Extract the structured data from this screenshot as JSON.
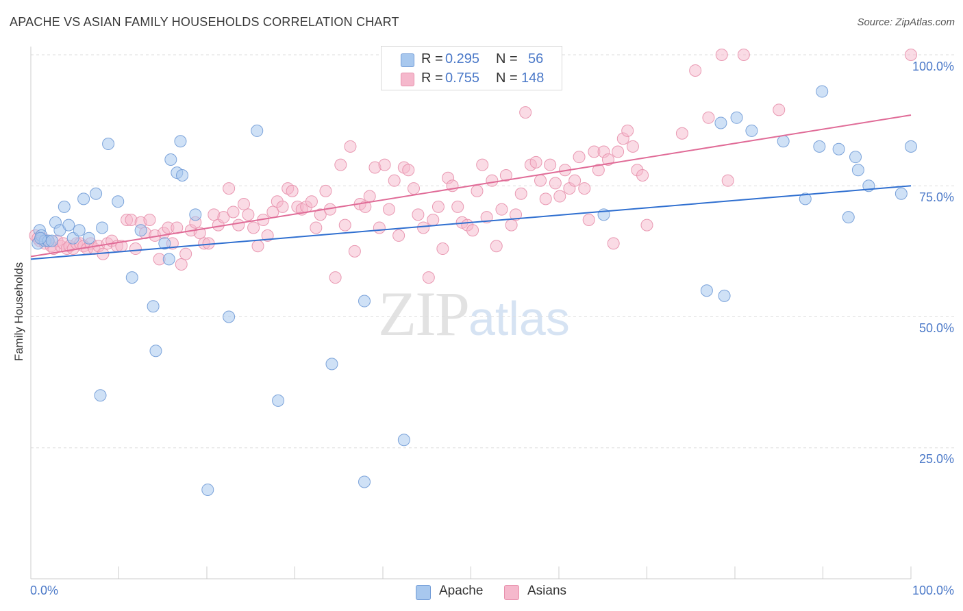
{
  "title": "APACHE VS ASIAN FAMILY HOUSEHOLDS CORRELATION CHART",
  "source": "Source: ZipAtlas.com",
  "legend": {
    "apache": {
      "r_label": "R =",
      "r_value": "0.295",
      "n_label": "N =",
      "n_value": "56"
    },
    "asians": {
      "r_label": "R =",
      "r_value": "0.755",
      "n_label": "N =",
      "n_value": "148"
    }
  },
  "bottom_legend": {
    "apache": "Apache",
    "asians": "Asians"
  },
  "watermark": {
    "zip": "ZIP",
    "atlas": "atlas"
  },
  "colors": {
    "apache_fill": "#a8c8ee",
    "apache_stroke": "#6f9ad6",
    "apache_line": "#2f6fd0",
    "asians_fill": "#f5b8cc",
    "asians_stroke": "#e78fab",
    "asians_line": "#e06b97",
    "tick_label": "#4a78c8",
    "grid": "#dddddd"
  },
  "chart_data": {
    "type": "scatter",
    "title": "APACHE VS ASIAN FAMILY HOUSEHOLDS CORRELATION CHART",
    "xlabel": "",
    "ylabel": "Family Households",
    "xlim": [
      0,
      100
    ],
    "ylim": [
      0,
      100
    ],
    "x_tick_labels": [
      "0.0%",
      "100.0%"
    ],
    "y_ticks": [
      25,
      50,
      75,
      100
    ],
    "y_tick_labels": [
      "25.0%",
      "50.0%",
      "75.0%",
      "100.0%"
    ],
    "grid": "horizontal dashed",
    "legend_position": "top-center",
    "series": [
      {
        "name": "Apache",
        "r": 0.295,
        "n": 56,
        "trend": {
          "x": [
            0,
            100
          ],
          "y": [
            61.0,
            75.0
          ]
        },
        "points": [
          [
            0.8,
            64.0
          ],
          [
            1.0,
            66.5
          ],
          [
            1.2,
            65.5
          ],
          [
            1.6,
            64.5
          ],
          [
            2.0,
            64.5
          ],
          [
            2.4,
            64.5
          ],
          [
            2.8,
            68.0
          ],
          [
            3.3,
            66.5
          ],
          [
            3.8,
            71.0
          ],
          [
            4.3,
            67.5
          ],
          [
            4.8,
            65.0
          ],
          [
            5.5,
            66.5
          ],
          [
            6.0,
            72.5
          ],
          [
            6.6,
            65.0
          ],
          [
            7.4,
            73.5
          ],
          [
            8.1,
            67.0
          ],
          [
            8.8,
            83.0
          ],
          [
            9.9,
            72.0
          ],
          [
            11.5,
            57.5
          ],
          [
            12.5,
            66.5
          ],
          [
            13.9,
            52.0
          ],
          [
            14.2,
            43.5
          ],
          [
            15.2,
            64.0
          ],
          [
            15.7,
            61.0
          ],
          [
            15.9,
            80.0
          ],
          [
            16.6,
            77.5
          ],
          [
            17.0,
            83.5
          ],
          [
            17.2,
            77.0
          ],
          [
            18.7,
            69.5
          ],
          [
            7.9,
            35.0
          ],
          [
            20.1,
            17.0
          ],
          [
            22.5,
            50.0
          ],
          [
            25.7,
            85.5
          ],
          [
            28.1,
            34.0
          ],
          [
            34.2,
            41.0
          ],
          [
            37.9,
            53.0
          ],
          [
            37.9,
            18.5
          ],
          [
            42.4,
            26.5
          ],
          [
            65.1,
            69.5
          ],
          [
            76.8,
            55.0
          ],
          [
            78.8,
            54.0
          ],
          [
            78.4,
            87.0
          ],
          [
            80.2,
            88.0
          ],
          [
            81.9,
            85.5
          ],
          [
            85.5,
            83.5
          ],
          [
            88.0,
            72.5
          ],
          [
            89.6,
            82.5
          ],
          [
            89.9,
            93.0
          ],
          [
            91.8,
            82.0
          ],
          [
            92.9,
            69.0
          ],
          [
            93.7,
            80.5
          ],
          [
            94.0,
            78.0
          ],
          [
            95.2,
            75.0
          ],
          [
            98.9,
            73.5
          ],
          [
            100.0,
            82.5
          ],
          [
            1.1,
            65.0
          ]
        ]
      },
      {
        "name": "Asians",
        "r": 0.755,
        "n": 148,
        "trend": {
          "x": [
            0,
            100
          ],
          "y": [
            61.5,
            88.5
          ]
        },
        "points": [
          [
            0.5,
            65.5
          ],
          [
            0.8,
            65.0
          ],
          [
            1.0,
            64.5
          ],
          [
            1.3,
            65.0
          ],
          [
            1.6,
            64.0
          ],
          [
            1.9,
            64.5
          ],
          [
            2.3,
            63.5
          ],
          [
            2.6,
            63.0
          ],
          [
            3.0,
            64.5
          ],
          [
            3.4,
            63.5
          ],
          [
            3.7,
            64.0
          ],
          [
            4.1,
            63.0
          ],
          [
            4.4,
            63.5
          ],
          [
            4.8,
            63.0
          ],
          [
            5.2,
            64.0
          ],
          [
            5.6,
            64.0
          ],
          [
            6.0,
            63.5
          ],
          [
            6.4,
            63.0
          ],
          [
            6.8,
            64.0
          ],
          [
            7.2,
            63.0
          ],
          [
            7.7,
            63.5
          ],
          [
            8.2,
            62.0
          ],
          [
            8.7,
            64.0
          ],
          [
            9.2,
            64.5
          ],
          [
            9.8,
            63.5
          ],
          [
            10.3,
            63.5
          ],
          [
            10.9,
            68.5
          ],
          [
            11.4,
            68.5
          ],
          [
            11.9,
            63.0
          ],
          [
            12.5,
            68.0
          ],
          [
            13.0,
            66.0
          ],
          [
            13.5,
            68.5
          ],
          [
            14.1,
            65.5
          ],
          [
            14.6,
            61.0
          ],
          [
            15.1,
            66.0
          ],
          [
            15.6,
            67.0
          ],
          [
            16.1,
            64.0
          ],
          [
            16.6,
            67.0
          ],
          [
            17.1,
            60.0
          ],
          [
            17.6,
            62.0
          ],
          [
            18.2,
            66.5
          ],
          [
            18.7,
            68.0
          ],
          [
            19.2,
            66.0
          ],
          [
            19.7,
            64.0
          ],
          [
            20.2,
            64.0
          ],
          [
            20.8,
            69.5
          ],
          [
            21.3,
            67.5
          ],
          [
            21.9,
            69.0
          ],
          [
            22.5,
            74.5
          ],
          [
            23.0,
            70.0
          ],
          [
            23.6,
            67.5
          ],
          [
            24.2,
            71.5
          ],
          [
            24.7,
            69.5
          ],
          [
            25.3,
            67.0
          ],
          [
            25.8,
            63.5
          ],
          [
            26.4,
            68.5
          ],
          [
            26.9,
            65.5
          ],
          [
            27.5,
            70.0
          ],
          [
            28.0,
            72.0
          ],
          [
            28.6,
            71.0
          ],
          [
            29.2,
            74.5
          ],
          [
            29.7,
            74.0
          ],
          [
            30.3,
            71.0
          ],
          [
            30.8,
            70.5
          ],
          [
            31.3,
            71.0
          ],
          [
            31.9,
            72.0
          ],
          [
            32.4,
            67.0
          ],
          [
            32.9,
            69.5
          ],
          [
            33.5,
            74.0
          ],
          [
            34.0,
            70.5
          ],
          [
            34.6,
            57.5
          ],
          [
            35.2,
            79.0
          ],
          [
            35.7,
            67.5
          ],
          [
            36.3,
            82.5
          ],
          [
            36.8,
            62.5
          ],
          [
            37.4,
            71.5
          ],
          [
            38.0,
            71.0
          ],
          [
            38.5,
            73.0
          ],
          [
            39.1,
            78.5
          ],
          [
            39.6,
            67.0
          ],
          [
            40.2,
            79.0
          ],
          [
            40.7,
            70.5
          ],
          [
            41.3,
            76.0
          ],
          [
            41.8,
            65.5
          ],
          [
            42.4,
            78.5
          ],
          [
            42.9,
            78.0
          ],
          [
            43.5,
            74.5
          ],
          [
            44.0,
            69.5
          ],
          [
            44.6,
            67.0
          ],
          [
            45.2,
            57.5
          ],
          [
            45.7,
            68.5
          ],
          [
            46.3,
            71.0
          ],
          [
            46.8,
            63.0
          ],
          [
            47.4,
            76.5
          ],
          [
            47.9,
            75.0
          ],
          [
            48.5,
            71.0
          ],
          [
            49.0,
            68.0
          ],
          [
            49.6,
            67.5
          ],
          [
            50.2,
            66.5
          ],
          [
            50.7,
            74.0
          ],
          [
            51.3,
            79.0
          ],
          [
            51.8,
            69.0
          ],
          [
            52.4,
            76.0
          ],
          [
            52.9,
            63.5
          ],
          [
            53.5,
            70.5
          ],
          [
            54.0,
            77.0
          ],
          [
            54.6,
            67.5
          ],
          [
            55.1,
            69.5
          ],
          [
            55.7,
            73.5
          ],
          [
            56.2,
            89.0
          ],
          [
            56.8,
            79.0
          ],
          [
            57.4,
            79.5
          ],
          [
            57.9,
            76.0
          ],
          [
            58.5,
            72.5
          ],
          [
            59.0,
            79.0
          ],
          [
            59.6,
            75.5
          ],
          [
            60.1,
            73.0
          ],
          [
            60.7,
            78.0
          ],
          [
            61.2,
            74.5
          ],
          [
            61.8,
            76.0
          ],
          [
            62.3,
            80.5
          ],
          [
            62.9,
            74.5
          ],
          [
            63.4,
            68.5
          ],
          [
            64.0,
            81.5
          ],
          [
            64.5,
            78.0
          ],
          [
            65.1,
            81.5
          ],
          [
            65.6,
            80.0
          ],
          [
            66.2,
            64.0
          ],
          [
            66.7,
            81.5
          ],
          [
            67.3,
            84.0
          ],
          [
            67.8,
            85.5
          ],
          [
            68.4,
            82.5
          ],
          [
            68.9,
            78.0
          ],
          [
            69.5,
            77.0
          ],
          [
            70.0,
            67.5
          ],
          [
            74.0,
            85.0
          ],
          [
            75.5,
            97.0
          ],
          [
            77.0,
            88.0
          ],
          [
            78.5,
            100.0
          ],
          [
            79.2,
            76.0
          ],
          [
            81.0,
            100.0
          ],
          [
            85.0,
            89.5
          ],
          [
            100.0,
            100.0
          ]
        ]
      }
    ]
  }
}
